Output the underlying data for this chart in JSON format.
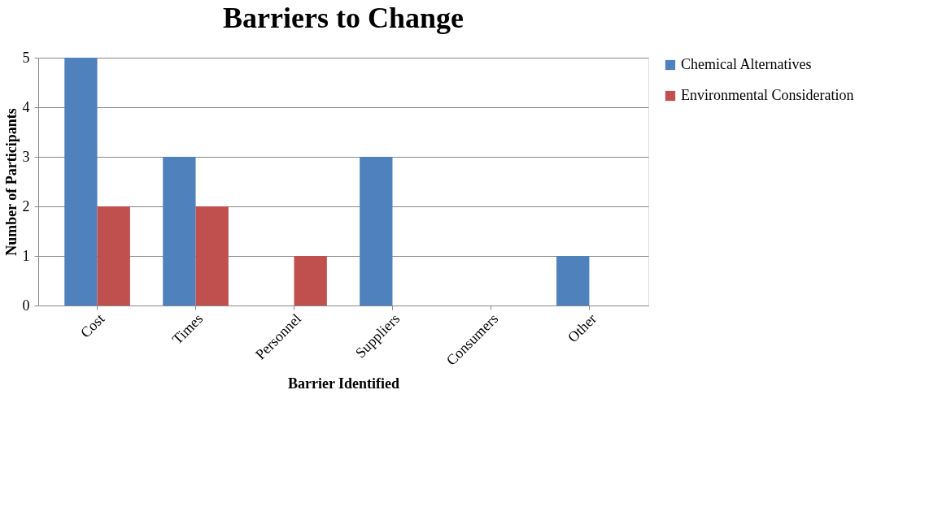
{
  "chart_data": {
    "type": "bar",
    "title": "Barriers to Change",
    "xlabel": "Barrier Identified",
    "ylabel": "Number of Participants",
    "categories": [
      "Cost",
      "Times",
      "Personnel",
      "Suppliers",
      "Consumers",
      "Other"
    ],
    "series": [
      {
        "name": "Chemical Alternatives",
        "color": "#4f81bd",
        "values": [
          5,
          3,
          0,
          3,
          0,
          1
        ]
      },
      {
        "name": "Environmental Consideration",
        "color": "#c0504d",
        "values": [
          2,
          2,
          1,
          0,
          0,
          0
        ]
      }
    ],
    "ylim": [
      0,
      5
    ],
    "yticks": [
      0,
      1,
      2,
      3,
      4,
      5
    ],
    "grid": "y",
    "legend": "right"
  }
}
